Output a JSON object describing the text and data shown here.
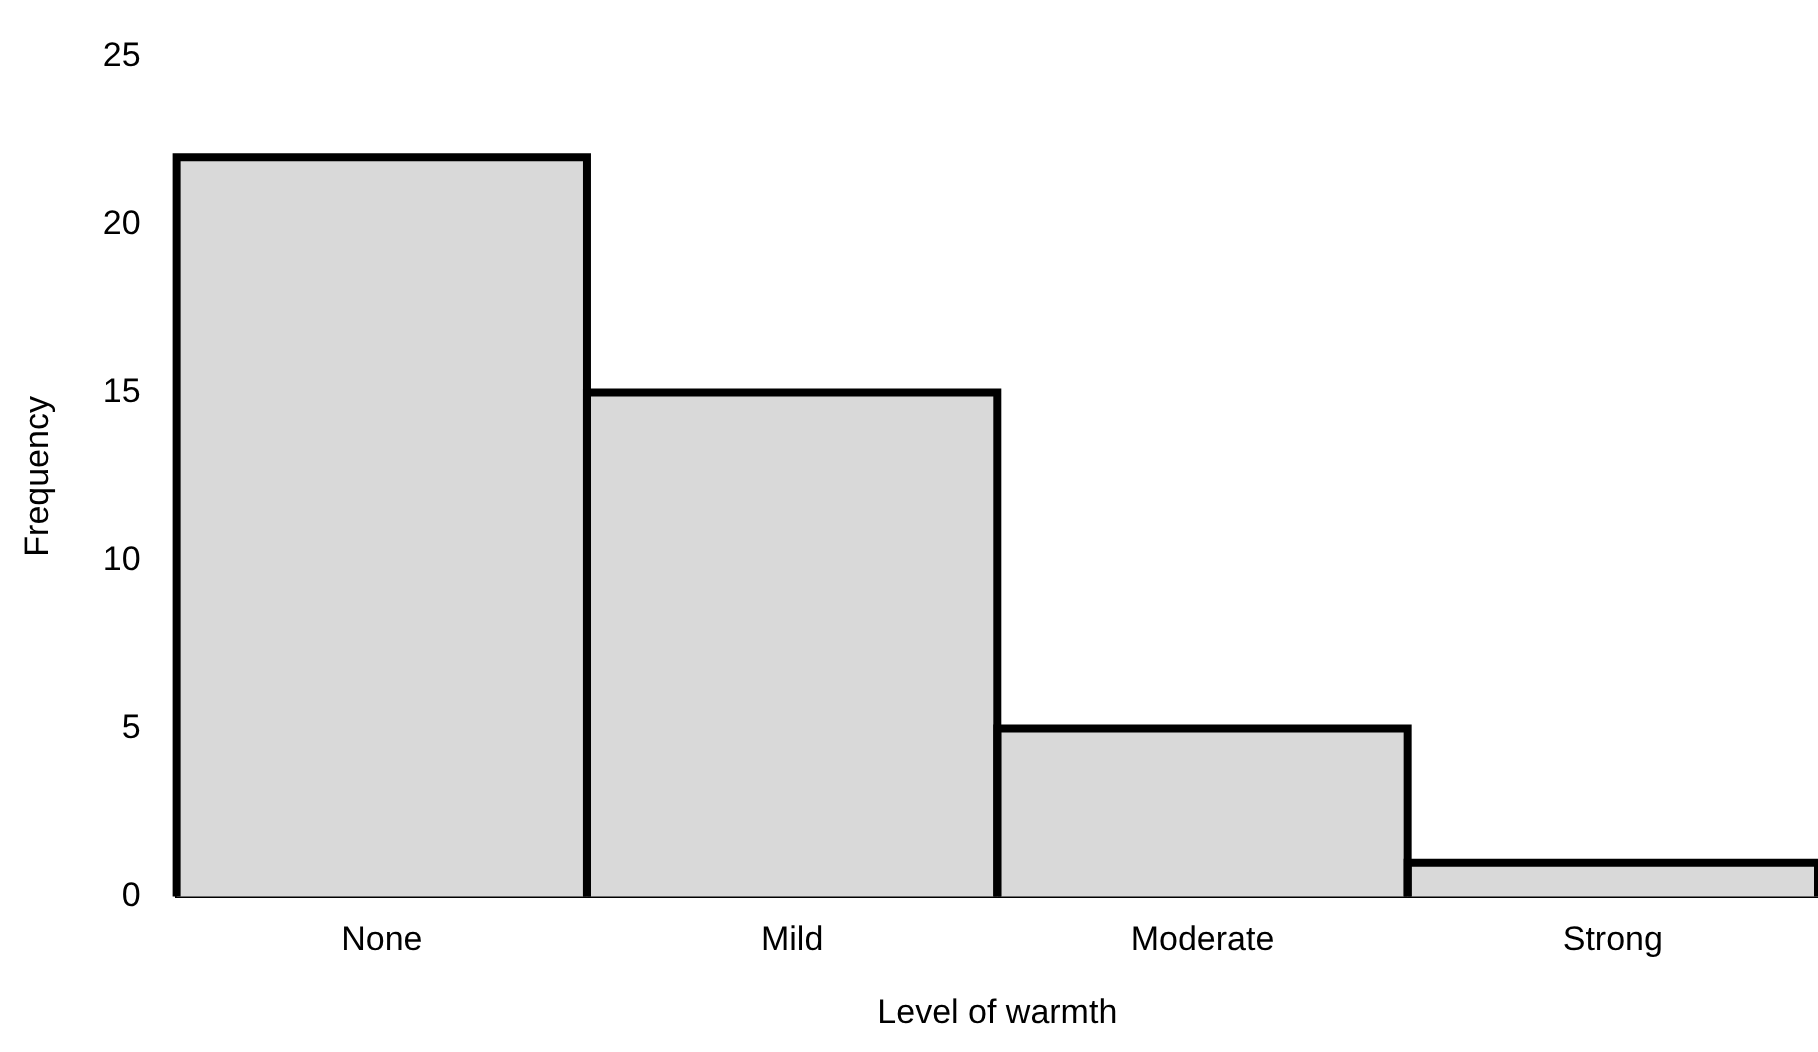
{
  "chart_data": {
    "type": "bar",
    "xlabel": "Level of warmth",
    "ylabel": "Frequency",
    "categories": [
      "None",
      "Mild",
      "Moderate",
      "Strong"
    ],
    "values": [
      22,
      15,
      5,
      1
    ],
    "color": "#d9d9d9",
    "ylim": [
      0,
      25
    ],
    "yticks": [
      0,
      5,
      10,
      15,
      20,
      25
    ],
    "grid": false,
    "legend": false
  }
}
